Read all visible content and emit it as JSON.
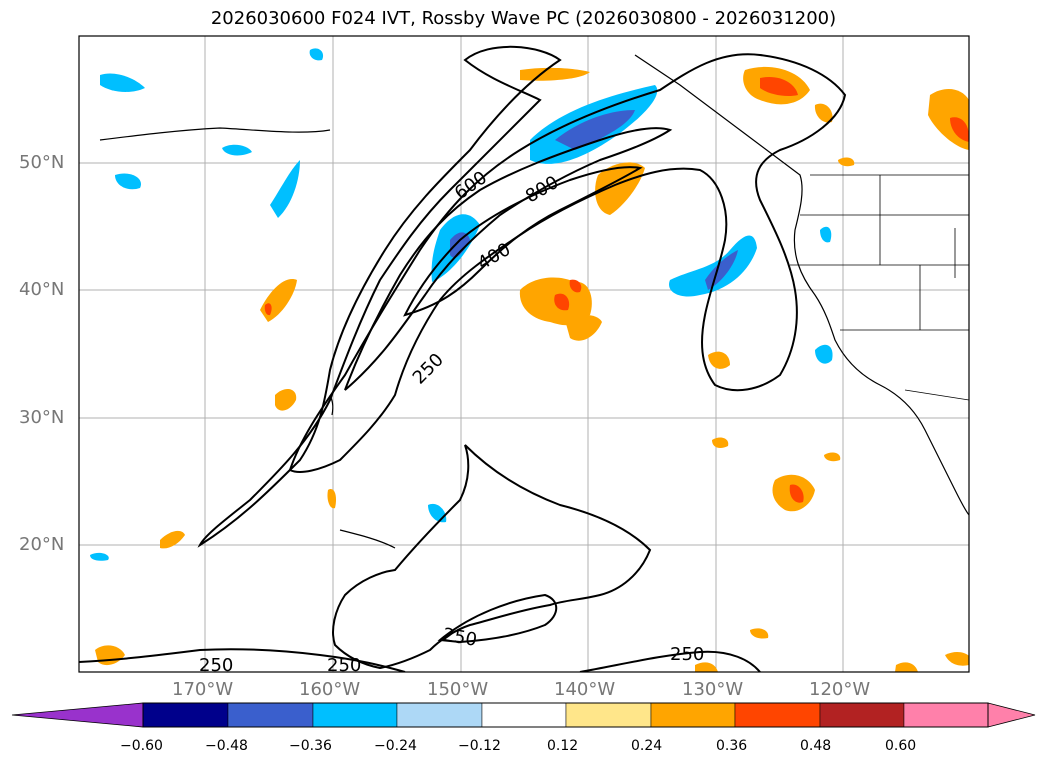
{
  "title": "2026030600 F024 IVT, Rossby Wave PC (2026030800 - 2026031200)",
  "map": {
    "lat_labels": [
      "50°N",
      "40°N",
      "30°N",
      "20°N"
    ],
    "lon_labels": [
      "170°W",
      "160°W",
      "150°W",
      "140°W",
      "130°W",
      "120°W"
    ],
    "contour_labels": [
      "600",
      "800",
      "400",
      "250",
      "250",
      "250",
      "250",
      "250"
    ]
  },
  "colorbar": {
    "labels": [
      "−0.60",
      "−0.48",
      "−0.36",
      "−0.24",
      "−0.12",
      "0.12",
      "0.24",
      "0.36",
      "0.48",
      "0.60"
    ],
    "colors": [
      "#9932cc",
      "#00008b",
      "#3a5fcd",
      "#00bfff",
      "#add8f6",
      "#ffffff",
      "#ffe68a",
      "#ffa500",
      "#ff4500",
      "#b22222",
      "#ff80aa"
    ]
  }
}
